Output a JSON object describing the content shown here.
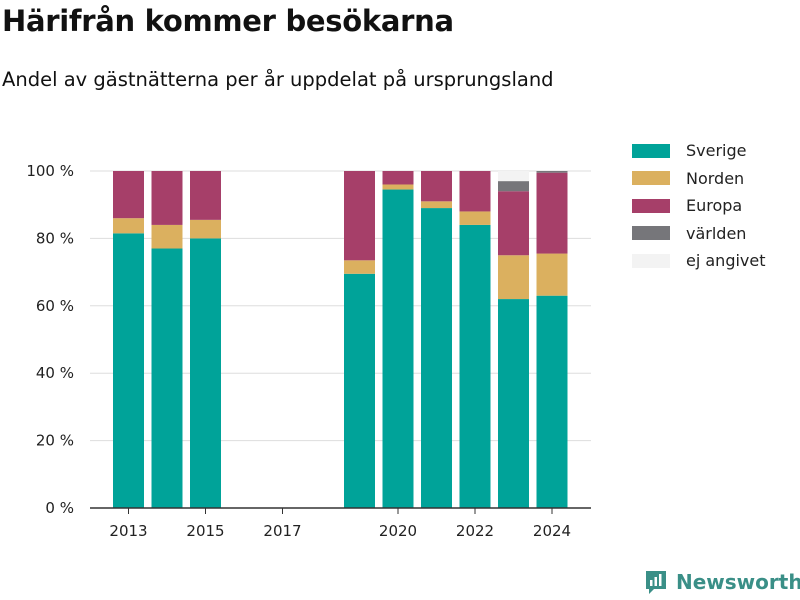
{
  "title": "Härifrån kommer besökarna",
  "subtitle": "Andel av gästnätterna per år uppdelat på ursprungsland",
  "brand": {
    "name": "Newsworthy",
    "icon": "newsworthy-logo-icon",
    "color": "#3a8f87"
  },
  "chart_data": {
    "type": "bar",
    "stacked": true,
    "years": [
      2013,
      2014,
      2015,
      2016,
      2017,
      2018,
      2019,
      2020,
      2021,
      2022,
      2023,
      2024
    ],
    "x_ticks": [
      2013,
      2015,
      2017,
      2020,
      2022,
      2024
    ],
    "x_tick_labels": [
      "2013",
      "2015",
      "2017",
      "2020",
      "2022",
      "2024"
    ],
    "y_ticks": [
      0,
      20,
      40,
      60,
      80,
      100
    ],
    "y_tick_labels": [
      "0 %",
      "20 %",
      "40 %",
      "60 %",
      "80 %",
      "100 %"
    ],
    "ylim": [
      0,
      100
    ],
    "grid": true,
    "legend_position": "top-right",
    "series": [
      {
        "name": "Sverige",
        "color": "#00a399",
        "values": [
          81.5,
          77,
          80,
          null,
          null,
          null,
          69.5,
          94.5,
          89,
          84,
          62,
          63
        ]
      },
      {
        "name": "Norden",
        "color": "#dbb05f",
        "values": [
          4.5,
          7,
          5.5,
          null,
          null,
          null,
          4,
          1.5,
          2,
          4,
          13,
          12.5
        ]
      },
      {
        "name": "Europa",
        "color": "#a63f69",
        "values": [
          14,
          16,
          14.5,
          null,
          null,
          null,
          26.5,
          4,
          9,
          12,
          19,
          24
        ]
      },
      {
        "name": "världen",
        "color": "#76767a",
        "values": [
          0,
          0,
          0,
          null,
          null,
          null,
          0,
          0,
          0,
          0,
          3,
          0.5
        ]
      },
      {
        "name": "ej angivet",
        "color": "#f3f3f3",
        "values": [
          0,
          0,
          0,
          null,
          null,
          null,
          0,
          0,
          0,
          0,
          3,
          0
        ]
      }
    ]
  }
}
